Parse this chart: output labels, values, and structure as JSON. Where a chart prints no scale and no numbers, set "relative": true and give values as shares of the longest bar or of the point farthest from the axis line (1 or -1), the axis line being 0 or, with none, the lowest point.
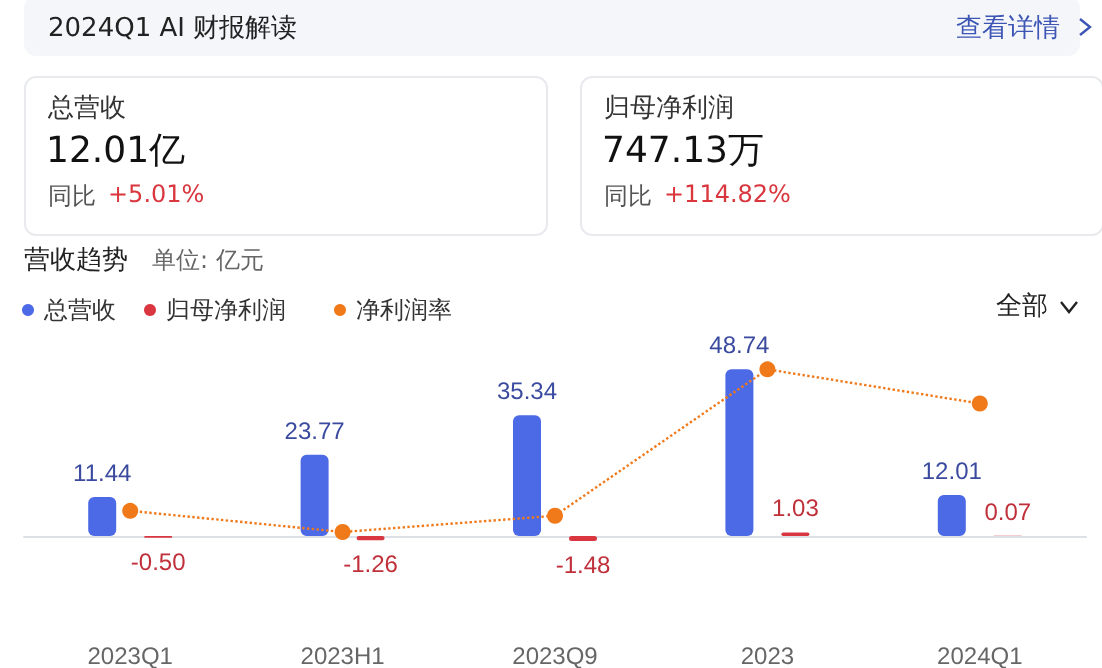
{
  "chart_data": [
    {
      "type": "bar",
      "title": "营收趋势",
      "subtitle": "单位: 亿元",
      "annotations": [
        "2024Q1 AI 财报解读",
        "查看详情",
        "总营收",
        "12.01亿",
        "同比",
        "+5.01%",
        "归母净利润",
        "747.13万",
        "同比",
        "+114.82%",
        "全部"
      ],
      "categories": [
        "2023Q1",
        "2023H1",
        "2023Q9",
        "2023",
        "2024Q1"
      ],
      "series": [
        {
          "name": "总营收",
          "color": "#4d6ae6",
          "values": [
            11.44,
            23.77,
            35.34,
            48.74,
            12.01
          ],
          "value_labels": [
            "11.44",
            "23.77",
            "35.34",
            "48.74",
            "12.01"
          ]
        },
        {
          "name": "归母净利润",
          "color": "#d93640",
          "values": [
            -0.5,
            -1.26,
            -1.48,
            1.03,
            0.07
          ],
          "value_labels": [
            "-0.50",
            "-1.26",
            "-1.48",
            "1.03",
            "0.07"
          ]
        }
      ],
      "legend": "top left",
      "grid": false
    },
    {
      "type": "line",
      "categories": [
        null,
        null,
        null,
        null,
        null
      ],
      "tick_labels": false,
      "relative": true,
      "series": [
        {
          "name": "净利润率",
          "color": "#f07a1a",
          "values": [
            0.13,
            0,
            0.1,
            1,
            0.79
          ]
        }
      ],
      "legend": "top left",
      "marker": "circle",
      "line_style": "dotted",
      "grid": false
    }
  ]
}
